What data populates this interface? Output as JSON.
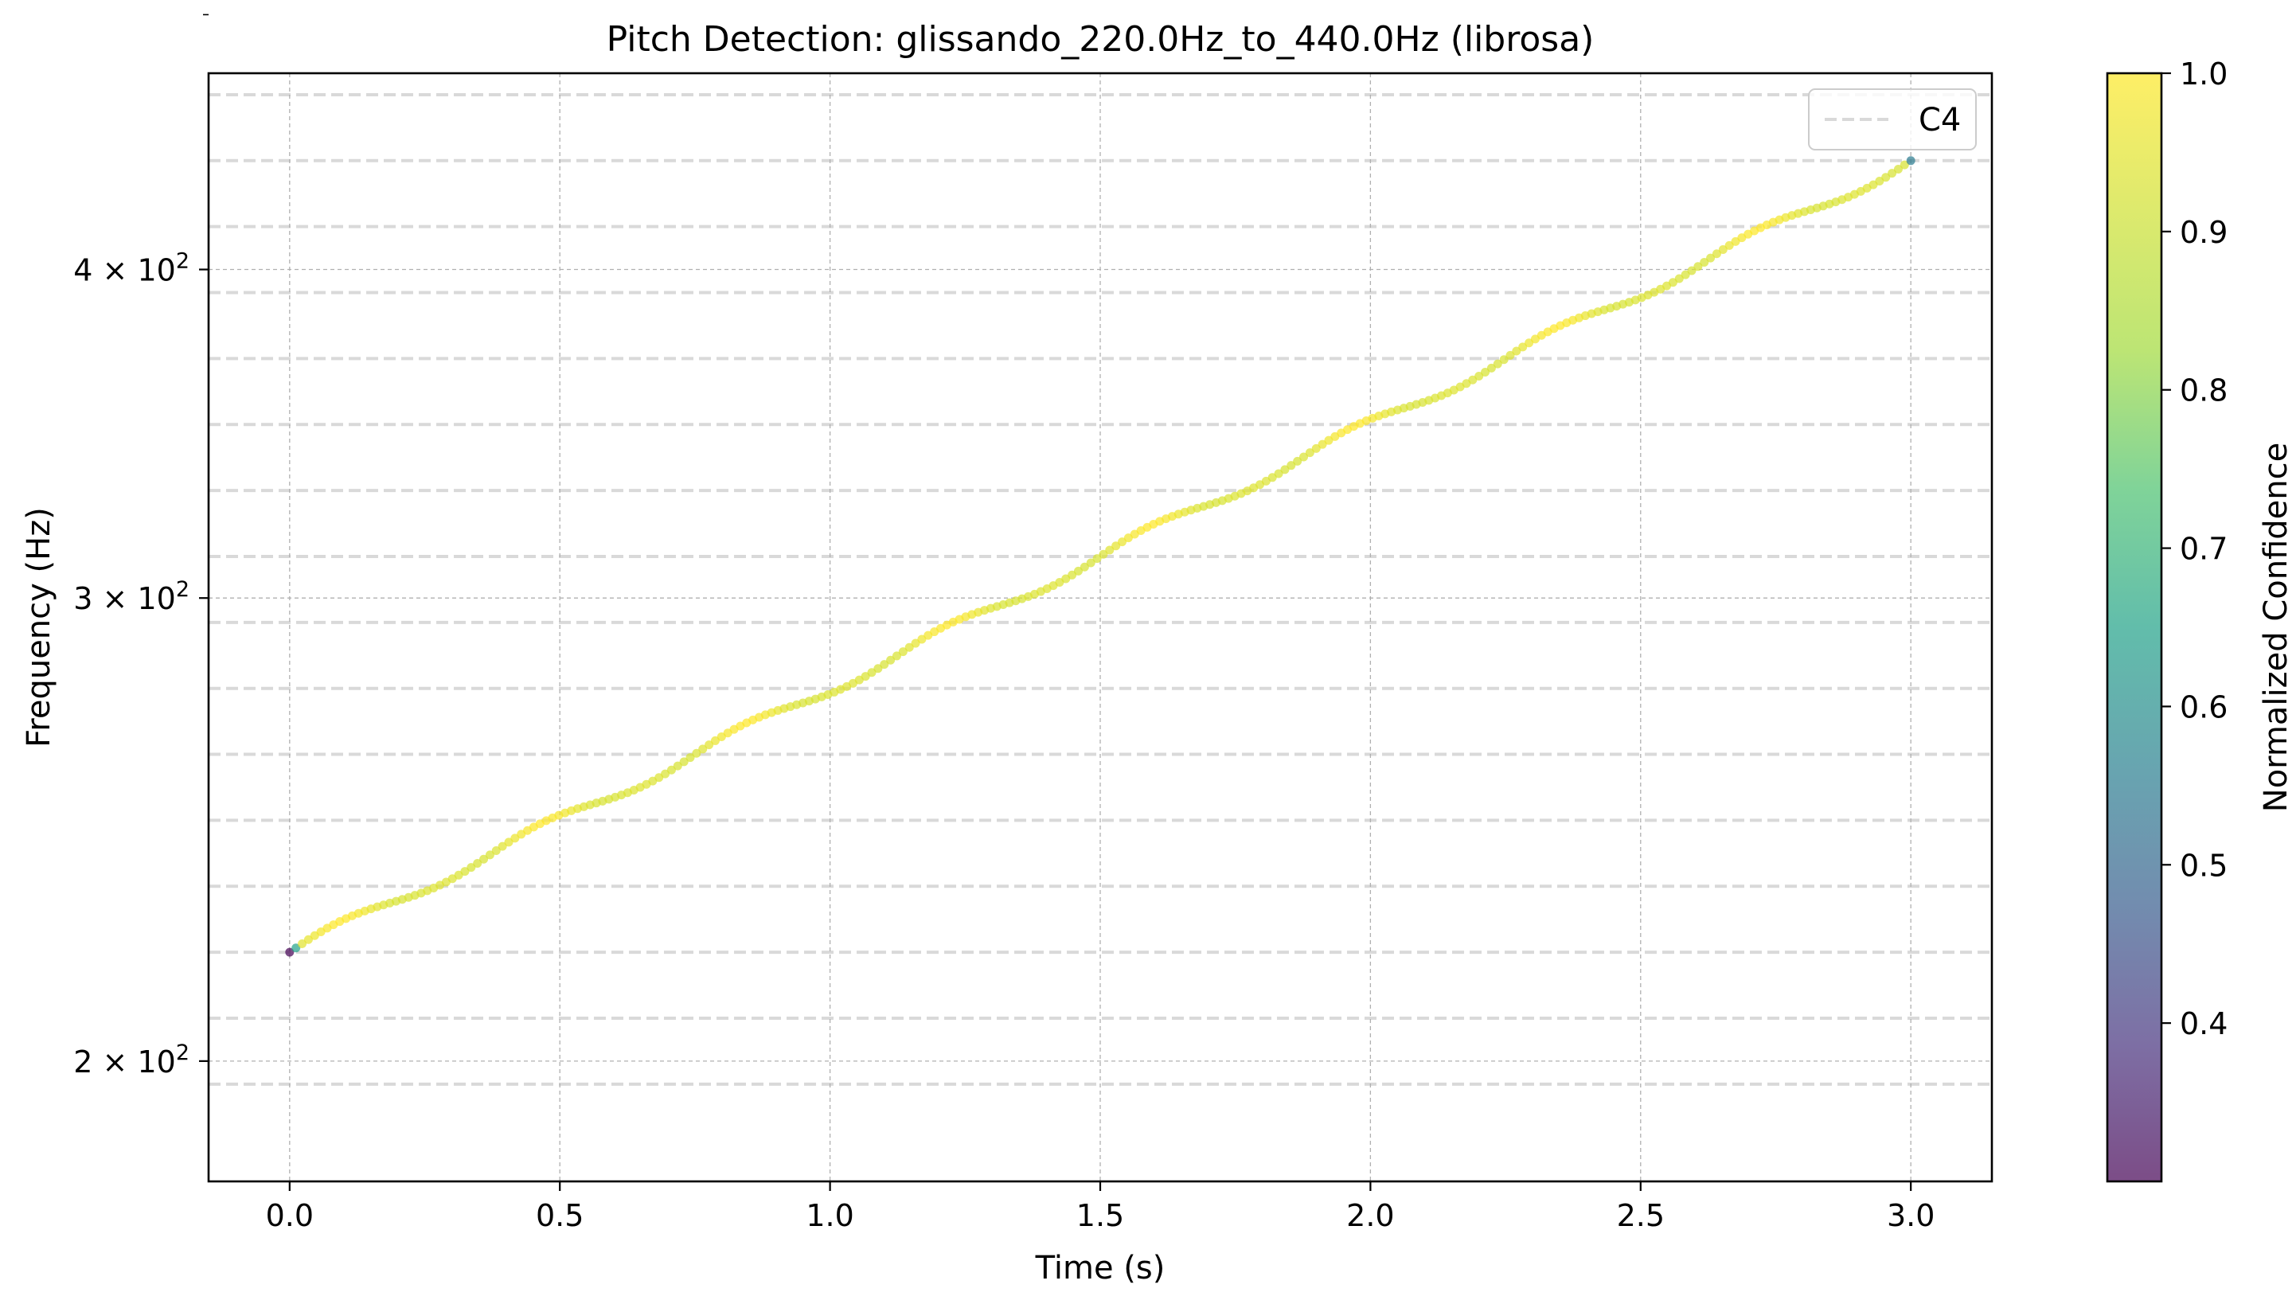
{
  "chart_data": {
    "type": "scatter",
    "title": "Pitch Detection: glissando_220.0Hz_to_440.0Hz (librosa)",
    "xlabel": "Time (s)",
    "ylabel": "Frequency (Hz)",
    "xlim": [
      -0.15,
      3.15
    ],
    "ylim": [
      180,
      475
    ],
    "yscale": "log",
    "grid": true,
    "x_ticks": [
      {
        "value": 0.0,
        "label": "0.0"
      },
      {
        "value": 0.5,
        "label": "0.5"
      },
      {
        "value": 1.0,
        "label": "1.0"
      },
      {
        "value": 1.5,
        "label": "1.5"
      },
      {
        "value": 2.0,
        "label": "2.0"
      },
      {
        "value": 2.5,
        "label": "2.5"
      },
      {
        "value": 3.0,
        "label": "3.0"
      }
    ],
    "y_ticks": [
      {
        "value": 200,
        "base": "2",
        "exp": "2"
      },
      {
        "value": 300,
        "base": "3",
        "exp": "2"
      },
      {
        "value": 400,
        "base": "4",
        "exp": "2"
      }
    ],
    "y_minor_ticks": [
      500
    ],
    "note_lines_hz": [
      196.0,
      207.65,
      220.0,
      233.08,
      246.94,
      261.63,
      277.18,
      293.66,
      311.13,
      329.63,
      349.23,
      369.99,
      392.0,
      415.3,
      440.0,
      466.16
    ],
    "note_lines_color": "#d9d9d9",
    "legend": {
      "placement": "top-right",
      "entries": [
        {
          "label": "C4",
          "style": "dashed",
          "color": "#d9d9d9"
        }
      ]
    },
    "series": {
      "f_start_hz": 220.0,
      "f_end_hz": 440.0,
      "t_start_s": 0.0,
      "t_end_s": 3.0,
      "frame_step_s": 0.0116,
      "ripple_cycles": 8,
      "ripple_amplitude": 0.0055,
      "confidence_start": 0.3,
      "confidence_end": 0.55,
      "confidence_typical": 0.97
    },
    "colorbar": {
      "label": "Normalized Confidence",
      "min": 0.3,
      "max": 1.0,
      "ticks": [
        "0.4",
        "0.5",
        "0.6",
        "0.7",
        "0.8",
        "0.9",
        "1.0"
      ],
      "colormap": "viridis",
      "alpha": 0.7
    }
  }
}
